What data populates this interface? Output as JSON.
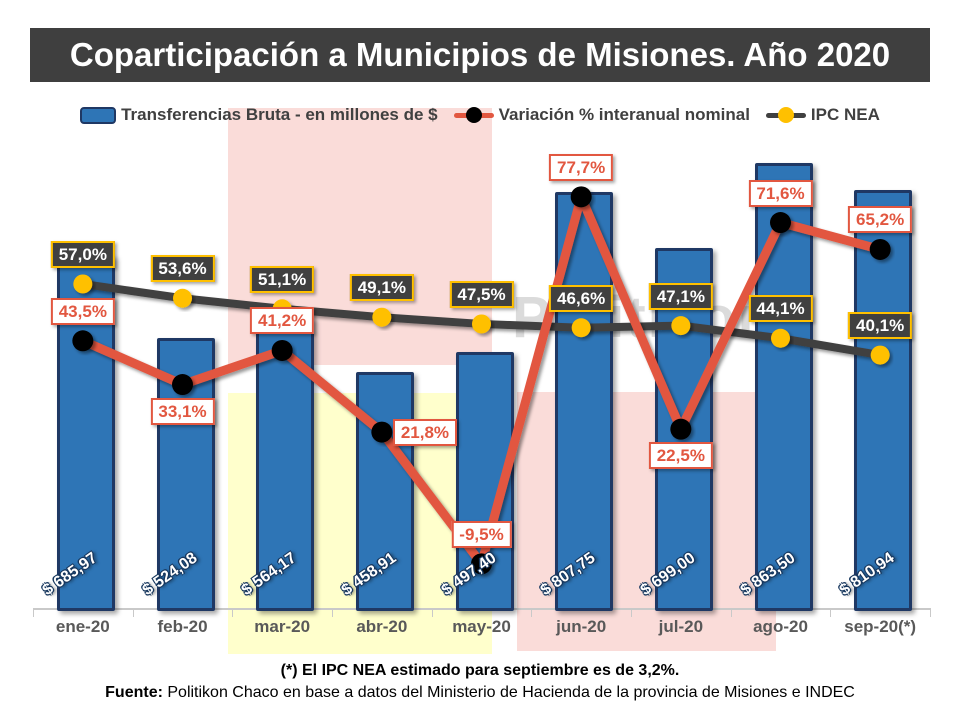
{
  "header": {
    "title": "Coparticipación a Municipios de Misiones. Año 2020"
  },
  "footnote": "(*) El IPC NEA estimado para septiembre es de 3,2%.",
  "source": {
    "label": "Fuente:",
    "text": "Politikon Chaco en base a datos del Ministerio de Hacienda de la provincia de Misiones e INDEC"
  },
  "colors": {
    "title_bar": "#3F3F3F",
    "bar_fill": "#2E75B6",
    "bar_border": "#1F3864",
    "variation_line": "#E25740",
    "variation_marker": "#000000",
    "ipc_line": "#404040",
    "ipc_marker": "#FFC000",
    "highlight_pink": "#FADCD9",
    "highlight_yellow": "#FFFFCC",
    "axis": "#C9C9C9",
    "x_label": "#595959"
  },
  "chart_data": {
    "type": "bar",
    "subtype": "bar-line combo, dual axis",
    "categories": [
      "ene-20",
      "feb-20",
      "mar-20",
      "abr-20",
      "may-20",
      "jun-20",
      "jul-20",
      "ago-20",
      "sep-20(*)"
    ],
    "series": [
      {
        "name": "Transferencias Bruta - en millones de $",
        "type": "bar",
        "axis": "primary",
        "values": [
          685.97,
          524.08,
          564.17,
          458.91,
          497.4,
          807.75,
          699.0,
          863.5,
          810.94
        ],
        "labels": [
          "$ 685,97",
          "$ 524,08",
          "$ 564,17",
          "$ 458,91",
          "$ 497,40",
          "$ 807,75",
          "$ 699,00",
          "$ 863,50",
          "$ 810,94"
        ],
        "color": "#2E75B6",
        "border_color": "#1F3864"
      },
      {
        "name": "Variación % interanual nominal",
        "type": "line",
        "axis": "secondary",
        "values": [
          43.5,
          33.1,
          41.2,
          21.8,
          -9.5,
          77.7,
          22.5,
          71.6,
          65.2
        ],
        "labels": [
          "43,5%",
          "33,1%",
          "41,2%",
          "21,8%",
          "-9,5%",
          "77,7%",
          "22,5%",
          "71,6%",
          "65,2%"
        ],
        "label_positions": [
          "above",
          "below",
          "above",
          "right",
          "above",
          "above",
          "below",
          "above",
          "above"
        ],
        "color": "#E25740",
        "marker_color": "#000000",
        "label_style": "var"
      },
      {
        "name": "IPC NEA",
        "type": "line",
        "axis": "secondary",
        "values": [
          57.0,
          53.6,
          51.1,
          49.1,
          47.5,
          46.6,
          47.1,
          44.1,
          40.1
        ],
        "labels": [
          "57,0%",
          "53,6%",
          "51,1%",
          "49,1%",
          "47,5%",
          "46,6%",
          "47,1%",
          "44,1%",
          "40,1%"
        ],
        "label_positions": [
          "above",
          "above",
          "above",
          "above",
          "above",
          "above",
          "above",
          "above",
          "above"
        ],
        "color": "#404040",
        "marker_color": "#FFC000",
        "label_style": "ipc"
      }
    ],
    "primary_axis_max": 980,
    "secondary_axis_range": [
      -20,
      100
    ],
    "grid": false,
    "legend_position": "top",
    "highlight_regions": [
      {
        "color": "#FADCD9",
        "note": "mar-20 to may-20 upper band"
      },
      {
        "color": "#FFFFCC",
        "note": "mar-20 to may-20 lower band"
      },
      {
        "color": "#FADCD9",
        "note": "jun-20 to ago-20 lower band"
      }
    ],
    "watermark": "Politikon"
  }
}
